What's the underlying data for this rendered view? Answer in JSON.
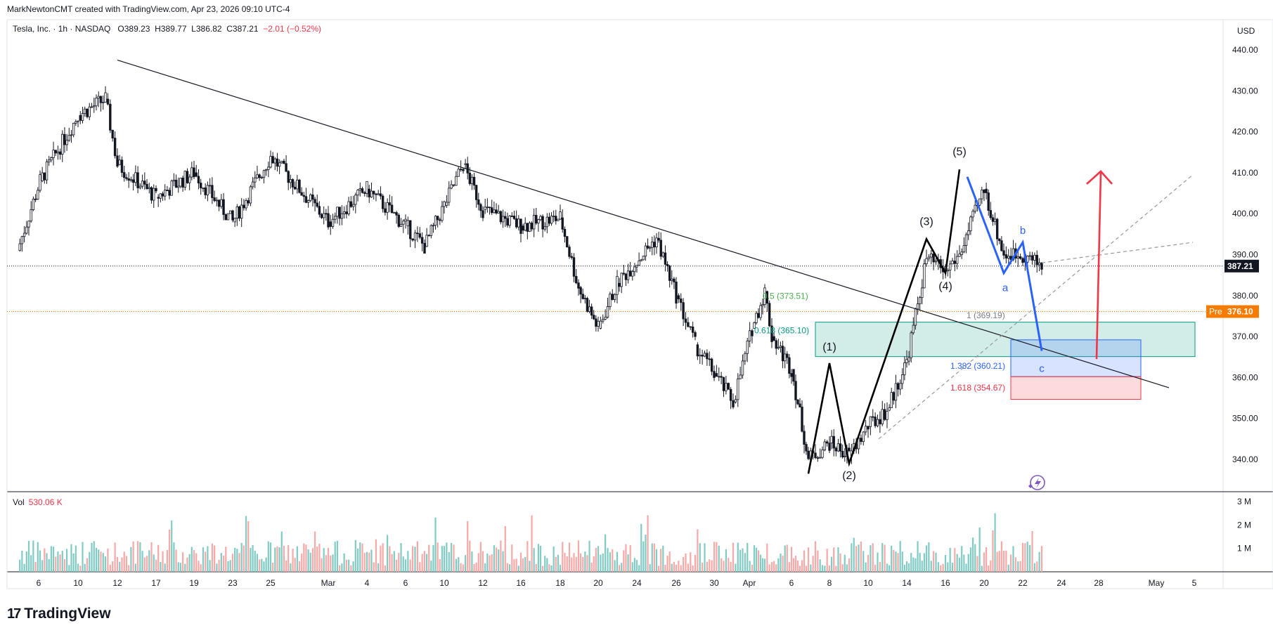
{
  "header": {
    "credit": "MarkNewtonCMT created with TradingView.com, Apr 23, 2026 09:10 UTC-4"
  },
  "legend": {
    "symbol": "Tesla, Inc. · 1h · NASDAQ",
    "open_label": "O",
    "open": "389.23",
    "high_label": "H",
    "high": "389.77",
    "low_label": "L",
    "low": "386.82",
    "close_label": "C",
    "close": "387.21",
    "change": "−2.01 (−0.52%)"
  },
  "volume_legend": {
    "label": "Vol",
    "value": "530.06 K"
  },
  "currency": "USD",
  "footer": {
    "brand": "TradingView",
    "mark": "17"
  },
  "colors": {
    "up": "#26a69a",
    "down": "#ef5350",
    "vol_up": "#80cbc4",
    "vol_down": "#f7a9a7",
    "last_price": "#131722",
    "pre_market": "#f57c00",
    "wave_black": "#000000",
    "wave_blue": "#2962ff",
    "target_red": "#f23645"
  },
  "chart_data": {
    "type": "candlestick",
    "x_tick_labels": [
      "6",
      "10",
      "12",
      "17",
      "19",
      "23",
      "25",
      "Mar",
      "4",
      "6",
      "10",
      "12",
      "16",
      "18",
      "20",
      "24",
      "26",
      "30",
      "Apr",
      "6",
      "8",
      "10",
      "14",
      "16",
      "20",
      "22",
      "24",
      "28",
      "May",
      "5"
    ],
    "price_axis": {
      "ticks": [
        440,
        430,
        420,
        410,
        400,
        390,
        380,
        370,
        360,
        350,
        340
      ],
      "ylim": [
        333.4,
        444.5
      ]
    },
    "volume_axis": {
      "ticks": [
        "3 M",
        "2 M",
        "1 M"
      ],
      "max": 3000000
    },
    "last_price": {
      "value": "387.21"
    },
    "pre_market": {
      "label": "Pre",
      "value": "376.10"
    },
    "waypoints": [
      {
        "label": "Feb 4",
        "o": 394,
        "c": 391,
        "h": 397,
        "l": 389
      },
      {
        "label": "Feb 6",
        "o": 391,
        "c": 408,
        "h": 411,
        "l": 388
      },
      {
        "label": "Feb 9",
        "o": 408,
        "c": 424,
        "h": 429,
        "l": 405
      },
      {
        "label": "Feb 11",
        "o": 424,
        "c": 428,
        "h": 437,
        "l": 420
      },
      {
        "label": "Feb 12",
        "o": 428,
        "c": 412,
        "h": 430,
        "l": 409
      },
      {
        "label": "Feb 17",
        "o": 412,
        "c": 404,
        "h": 416,
        "l": 400
      },
      {
        "label": "Feb 19",
        "o": 404,
        "c": 410,
        "h": 413,
        "l": 401
      },
      {
        "label": "Feb 23",
        "o": 410,
        "c": 398,
        "h": 412,
        "l": 395
      },
      {
        "label": "Feb 25",
        "o": 398,
        "c": 414,
        "h": 420,
        "l": 396
      },
      {
        "label": "Mar 2",
        "o": 414,
        "c": 398,
        "h": 416,
        "l": 389
      },
      {
        "label": "Mar 4",
        "o": 398,
        "c": 406,
        "h": 408,
        "l": 387
      },
      {
        "label": "Mar 6",
        "o": 406,
        "c": 397,
        "h": 410,
        "l": 393
      },
      {
        "label": "Mar 9",
        "o": 397,
        "c": 392,
        "h": 399,
        "l": 382
      },
      {
        "label": "Mar 10",
        "o": 392,
        "c": 402,
        "h": 408,
        "l": 390
      },
      {
        "label": "Mar 11",
        "o": 402,
        "c": 412,
        "h": 416,
        "l": 398
      },
      {
        "label": "Mar 12",
        "o": 412,
        "c": 401,
        "h": 413,
        "l": 398
      },
      {
        "label": "Mar 16",
        "o": 401,
        "c": 397,
        "h": 403,
        "l": 391
      },
      {
        "label": "Mar 18",
        "o": 397,
        "c": 399,
        "h": 403,
        "l": 394
      },
      {
        "label": "Mar 19",
        "o": 399,
        "c": 382,
        "h": 400,
        "l": 378
      },
      {
        "label": "Mar 20",
        "o": 382,
        "c": 372,
        "h": 385,
        "l": 367
      },
      {
        "label": "Mar 23",
        "o": 372,
        "c": 383,
        "h": 386,
        "l": 371
      },
      {
        "label": "Mar 25",
        "o": 383,
        "c": 394,
        "h": 396,
        "l": 381
      },
      {
        "label": "Mar 26",
        "o": 394,
        "c": 380,
        "h": 395,
        "l": 376
      },
      {
        "label": "Mar 27",
        "o": 380,
        "c": 368,
        "h": 382,
        "l": 364
      },
      {
        "label": "Mar 30",
        "o": 368,
        "c": 361,
        "h": 370,
        "l": 356
      },
      {
        "label": "Mar 31",
        "o": 361,
        "c": 354,
        "h": 363,
        "l": 351
      },
      {
        "label": "Apr 1",
        "o": 354,
        "c": 372,
        "h": 376,
        "l": 352
      },
      {
        "label": "Apr 2",
        "o": 372,
        "c": 381,
        "h": 383,
        "l": 370
      },
      {
        "label": "Apr 3",
        "o": 381,
        "c": 370,
        "h": 382,
        "l": 366
      },
      {
        "label": "Apr 6",
        "o": 370,
        "c": 362,
        "h": 372,
        "l": 358
      },
      {
        "label": "Apr 7",
        "o": 362,
        "c": 340,
        "h": 364,
        "l": 337
      },
      {
        "label": "Apr 8",
        "o": 340,
        "c": 344,
        "h": 351,
        "l": 339
      },
      {
        "label": "Apr 9",
        "o": 344,
        "c": 341,
        "h": 349,
        "l": 338
      },
      {
        "label": "Apr 10",
        "o": 341,
        "c": 348,
        "h": 351,
        "l": 340
      },
      {
        "label": "Apr 13",
        "o": 348,
        "c": 352,
        "h": 356,
        "l": 347
      },
      {
        "label": "Apr 14",
        "o": 352,
        "c": 364,
        "h": 368,
        "l": 351
      },
      {
        "label": "Apr 15",
        "o": 364,
        "c": 389,
        "h": 393,
        "l": 362
      },
      {
        "label": "Apr 16",
        "o": 389,
        "c": 386,
        "h": 394,
        "l": 383
      },
      {
        "label": "Apr 17",
        "o": 386,
        "c": 390,
        "h": 393,
        "l": 385
      },
      {
        "label": "Apr 20",
        "o": 390,
        "c": 406,
        "h": 409,
        "l": 388
      },
      {
        "label": "Apr 21",
        "o": 406,
        "c": 390,
        "h": 407,
        "l": 386
      },
      {
        "label": "Apr 22",
        "o": 390,
        "c": 390,
        "h": 393,
        "l": 386
      },
      {
        "label": "Apr 23",
        "o": 389.23,
        "c": 387.21,
        "h": 389.77,
        "l": 386.82
      }
    ],
    "trendlines": [
      {
        "name": "descending-trendline",
        "from": [
          "Feb 12",
          437.5
        ],
        "to": [
          "Apr 28",
          357.5
        ],
        "style": "solid"
      },
      {
        "name": "rising-channel-line",
        "from": [
          "Apr 11",
          345
        ],
        "to": [
          "Apr 29",
          409.5
        ],
        "style": "dashed"
      },
      {
        "name": "channel-upper-extension",
        "from": [
          "Apr 23",
          388
        ],
        "to": [
          "Apr 29",
          393
        ],
        "style": "dashed"
      }
    ],
    "fib_levels": [
      {
        "label": "0.5 (373.51)",
        "value": 373.51,
        "color": "#4caf50"
      },
      {
        "label": "0.618 (365.10)",
        "value": 365.1,
        "color": "#089981"
      },
      {
        "label": "1 (369.19)",
        "value": 369.19,
        "color": "#787b86"
      },
      {
        "label": "1.382 (360.21)",
        "value": 360.21,
        "color": "#2962ff"
      },
      {
        "label": "1.618 (354.67)",
        "value": 354.67,
        "color": "#f23645"
      }
    ],
    "elliott_impulse": [
      {
        "label": "",
        "at": [
          "Apr 7",
          336.5
        ]
      },
      {
        "label": "(1)",
        "at": [
          "Apr 8",
          363.5
        ]
      },
      {
        "label": "(2)",
        "at": [
          "Apr 9",
          339
        ]
      },
      {
        "label": "(3)",
        "at": [
          "Apr 15",
          393.8
        ]
      },
      {
        "label": "(4)",
        "at": [
          "Apr 16",
          385.5
        ]
      },
      {
        "label": "(5)",
        "at": [
          "Apr 17",
          410.8
        ]
      }
    ],
    "elliott_correction": [
      {
        "label": "",
        "at": [
          "Apr 18",
          409
        ]
      },
      {
        "label": "a",
        "at": [
          "Apr 21",
          385.5
        ]
      },
      {
        "label": "b",
        "at": [
          "Apr 22",
          393
        ]
      },
      {
        "label": "c",
        "at": [
          "Apr 23",
          366.5
        ]
      }
    ],
    "projection_arrow": {
      "from": [
        "Apr 26",
        364.5
      ],
      "to": [
        "Apr 26",
        410
      ]
    }
  }
}
